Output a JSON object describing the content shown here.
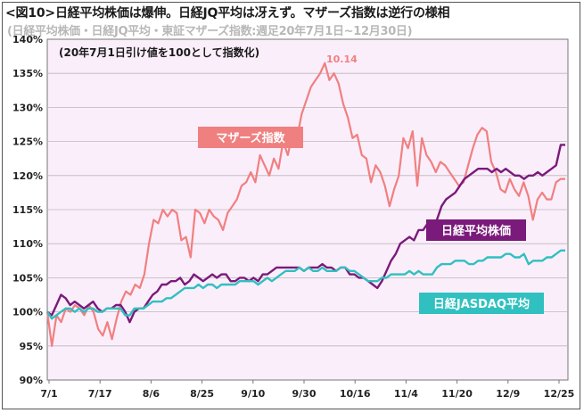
{
  "header": {
    "title": "<図10>日経平均株価は爆伸。日経JQ平均は冴えず。マザーズ指数は逆行の様相",
    "subtitle": "(日経平均株価・日経JQ平均・東証マザーズ指数:週足20年7月1日~12月30日)"
  },
  "chart_data": {
    "type": "line",
    "note": "(20年7月1日引け値を100として指数化)",
    "peak_label": "10.14",
    "x_tick_labels": [
      "7/1",
      "7/17",
      "8/6",
      "8/25",
      "9/10",
      "9/30",
      "10/16",
      "11/4",
      "11/20",
      "12/9",
      "12/25"
    ],
    "y_tick_labels": [
      "90%",
      "95%",
      "100%",
      "105%",
      "110%",
      "115%",
      "120%",
      "125%",
      "130%",
      "135%",
      "140%"
    ],
    "ylim": [
      90,
      140
    ],
    "grid": true,
    "colors": {
      "plot_background": "#fbeefb",
      "gridline": "#b8b8b8",
      "mothers": "#f08080",
      "nikkei": "#7a1a7a",
      "jasdaq": "#30c0c0"
    },
    "series": [
      {
        "name": "マザーズ指数",
        "color": "#f08080",
        "values": [
          100,
          95,
          99.5,
          98.5,
          100.5,
          100,
          101,
          100.5,
          99.5,
          101,
          100,
          97.5,
          96.5,
          98.5,
          96,
          99,
          101.5,
          103,
          102.5,
          104,
          103.5,
          105.5,
          110,
          113.5,
          113,
          115,
          114,
          115,
          114.5,
          110.5,
          111,
          108,
          115,
          114.5,
          113,
          115,
          114,
          113.5,
          112,
          114.5,
          115.5,
          116.5,
          118.5,
          119,
          120.5,
          119,
          123,
          121.5,
          120,
          122.5,
          121,
          125,
          123,
          126,
          125.5,
          129,
          131,
          133,
          134,
          135,
          136.5,
          134,
          135,
          133.5,
          130.5,
          128.5,
          125.5,
          126,
          123,
          122.5,
          119,
          121.5,
          120.5,
          118.5,
          115.5,
          118,
          120,
          125.5,
          124,
          126.5,
          118.5,
          125.5,
          123,
          122,
          120.5,
          122,
          121.5,
          120.5,
          119.5,
          118.5,
          119,
          121.5,
          124,
          126,
          127,
          126.5,
          122,
          120.5,
          118,
          117.5,
          119.5,
          118,
          117,
          119,
          117,
          113.5,
          116.5,
          117.5,
          116.5,
          116.5,
          119,
          119.5,
          119.5
        ]
      },
      {
        "name": "日経平均株価",
        "color": "#7a1a7a",
        "values": [
          100,
          99.5,
          101,
          102.5,
          102,
          101,
          101.5,
          101,
          100.5,
          101,
          101.5,
          100.5,
          100,
          100.5,
          100.5,
          101,
          101,
          100,
          98.5,
          100,
          100.5,
          100.5,
          101.5,
          102.5,
          103,
          104,
          104,
          104.5,
          104.5,
          105,
          104,
          104.5,
          105.5,
          105,
          104.5,
          105,
          105.5,
          105,
          105.5,
          105.5,
          104.5,
          104.5,
          105,
          105,
          104.5,
          105,
          104.5,
          105.5,
          105.5,
          106,
          106.5,
          106.5,
          106.5,
          106.5,
          106.5,
          106.5,
          106,
          106.5,
          106.5,
          106.5,
          107,
          106.5,
          106.5,
          106,
          106.5,
          106.5,
          105.5,
          105.5,
          105,
          105,
          104.5,
          104,
          103.5,
          104.5,
          106,
          107.5,
          108.5,
          110,
          110.5,
          111,
          110.5,
          112,
          112,
          113,
          113,
          113.5,
          115.5,
          116.5,
          117,
          117.5,
          118.5,
          119.5,
          120,
          120.5,
          121,
          121,
          121,
          120.5,
          121,
          120.5,
          121,
          120.5,
          120,
          120,
          119.5,
          120,
          120,
          120.5,
          120,
          120.5,
          121,
          121.5,
          124.5,
          124.5
        ]
      },
      {
        "name": "日経JASDAQ平均",
        "color": "#30c0c0",
        "values": [
          100,
          99,
          99.5,
          100,
          100.5,
          100.5,
          100,
          100.5,
          100,
          100.5,
          100.5,
          100,
          100,
          100.5,
          100.5,
          100.5,
          100.5,
          99.5,
          99.5,
          100.5,
          100.5,
          100.5,
          101,
          101.5,
          101.5,
          101.5,
          102,
          102,
          102.5,
          103,
          103.5,
          103.5,
          103.5,
          104,
          103.5,
          104,
          104,
          103.5,
          104,
          104,
          104,
          104,
          104.5,
          104.5,
          104.5,
          104.5,
          104,
          104.5,
          105,
          104.5,
          105,
          105.5,
          106,
          106,
          106,
          106.5,
          106,
          106.5,
          106,
          106,
          106.5,
          106,
          106,
          106,
          106.5,
          106.5,
          106,
          106,
          105.5,
          105,
          104.5,
          104.5,
          104.5,
          105,
          105,
          105.5,
          105.5,
          105.5,
          105.5,
          106,
          105.5,
          106,
          105.5,
          105.5,
          105.5,
          106.5,
          107,
          107,
          107,
          107.5,
          107.5,
          107.5,
          107,
          107,
          107.5,
          107.5,
          108,
          108,
          108,
          108,
          108.5,
          108.5,
          108,
          108,
          108.5,
          107,
          107.5,
          107.5,
          107.5,
          108,
          108,
          108.5,
          109,
          109
        ]
      }
    ]
  }
}
